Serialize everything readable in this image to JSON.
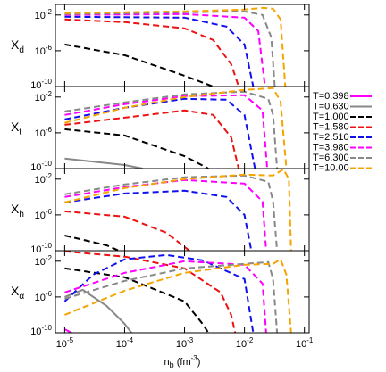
{
  "chart_data": {
    "type": "line",
    "log_x": true,
    "log_y": true,
    "xlabel": {
      "main": "n",
      "sub": "b",
      "unit": " (fm",
      "unit_exp": "-3",
      "close": ")"
    },
    "xlim": [
      7e-06,
      0.12
    ],
    "xticks": [
      {
        "value": 1e-05,
        "label": "10^-5"
      },
      {
        "value": 0.0001,
        "label": "10^-4"
      },
      {
        "value": 0.001,
        "label": "10^-3"
      },
      {
        "value": 0.01,
        "label": "10^-2"
      },
      {
        "value": 0.1,
        "label": "10^-1"
      }
    ],
    "series": [
      {
        "name": "T=0.398",
        "color": "#ff00ff",
        "dashed": false
      },
      {
        "name": "T=0.630",
        "color": "#888888",
        "dashed": false
      },
      {
        "name": "T=1.000",
        "color": "#000000",
        "dashed": true
      },
      {
        "name": "T=1.580",
        "color": "#ee1111",
        "dashed": true
      },
      {
        "name": "T=2.510",
        "color": "#1111ee",
        "dashed": true
      },
      {
        "name": "T=3.980",
        "color": "#ff00ff",
        "dashed": true
      },
      {
        "name": "T=6.300",
        "color": "#888888",
        "dashed": true
      },
      {
        "name": "T=10.00",
        "color": "#f5a400",
        "dashed": true
      }
    ],
    "panels": [
      {
        "ylabel": "X",
        "ylabel_sub": "d",
        "ylim": [
          1e-10,
          0.15
        ],
        "yticks": [
          {
            "value": 0.01,
            "label": "10^-2"
          },
          {
            "value": 1e-06,
            "label": "10^-6"
          },
          {
            "value": 1e-10,
            "label": "10^-10"
          }
        ],
        "lines": [
          {
            "x": [],
            "values": []
          },
          {
            "x": [],
            "values": []
          },
          {
            "x": [
              1e-05,
              0.0001,
              0.001,
              0.003
            ],
            "values": [
              5e-06,
              3.2e-07,
              1.6e-09,
              1e-10
            ]
          },
          {
            "x": [
              1e-05,
              0.0001,
              0.001,
              0.003,
              0.006,
              0.008
            ],
            "values": [
              0.0032,
              0.0016,
              0.00032,
              1.6e-05,
              3.2e-08,
              1e-10
            ]
          },
          {
            "x": [
              1e-05,
              0.001,
              0.005,
              0.01,
              0.014
            ],
            "values": [
              0.0063,
              0.005,
              0.0005,
              5e-06,
              1e-10
            ]
          },
          {
            "x": [
              1e-05,
              0.001,
              0.01,
              0.017,
              0.022
            ],
            "values": [
              0.01,
              0.0126,
              0.005,
              0.00016,
              1e-10
            ]
          },
          {
            "x": [
              1e-05,
              0.001,
              0.01,
              0.02,
              0.028,
              0.032
            ],
            "values": [
              0.0126,
              0.02,
              0.025,
              0.01,
              3.2e-05,
              1e-10
            ]
          },
          {
            "x": [
              1e-05,
              0.001,
              0.01,
              0.02,
              0.03,
              0.04,
              0.048
            ],
            "values": [
              0.016,
              0.025,
              0.04,
              0.063,
              0.05,
              0.0032,
              1e-10
            ]
          }
        ]
      },
      {
        "ylabel": "X",
        "ylabel_sub": "t",
        "ylim": [
          1e-10,
          0.15
        ],
        "yticks": [
          {
            "value": 0.01,
            "label": "10^-2"
          },
          {
            "value": 1e-06,
            "label": "10^-6"
          },
          {
            "value": 1e-10,
            "label": "10^-10"
          }
        ],
        "lines": [
          {
            "x": [],
            "values": []
          },
          {
            "x": [
              1e-05,
              0.0001,
              0.0002
            ],
            "values": [
              1.3e-09,
              2.5e-10,
              1e-10
            ]
          },
          {
            "x": [
              1e-05,
              0.0001,
              0.001,
              0.0025
            ],
            "values": [
              2.5e-06,
              5e-07,
              2.5e-09,
              1e-10
            ]
          },
          {
            "x": [
              1e-05,
              0.0001,
              0.001,
              0.003,
              0.006,
              0.008
            ],
            "values": [
              7.9e-06,
              5e-05,
              0.00032,
              0.0001,
              3.2e-07,
              1e-10
            ]
          },
          {
            "x": [
              1e-05,
              0.0001,
              0.001,
              0.005,
              0.01,
              0.015
            ],
            "values": [
              3.2e-05,
              0.00063,
              0.0063,
              0.005,
              0.0001,
              1e-10
            ]
          },
          {
            "x": [
              1e-05,
              0.0001,
              0.001,
              0.01,
              0.02,
              0.024
            ],
            "values": [
              0.0001,
              0.0016,
              0.0126,
              0.016,
              0.00032,
              1e-10
            ]
          },
          {
            "x": [
              1e-05,
              0.0001,
              0.001,
              0.01,
              0.025,
              0.03,
              0.035
            ],
            "values": [
              0.00025,
              0.0025,
              0.02,
              0.04,
              0.0063,
              0.0001,
              1e-10
            ]
          },
          {
            "x": [
              1e-05,
              0.0001,
              0.001,
              0.01,
              0.03,
              0.04,
              0.05
            ],
            "values": [
              1.3e-05,
              0.00063,
              0.01,
              0.063,
              0.1,
              0.0032,
              1e-10
            ]
          }
        ]
      },
      {
        "ylabel": "X",
        "ylabel_sub": "h",
        "ylim": [
          1e-10,
          0.15
        ],
        "yticks": [
          {
            "value": 0.01,
            "label": "10^-2"
          },
          {
            "value": 1e-06,
            "label": "10^-6"
          },
          {
            "value": 1e-10,
            "label": "10^-10"
          }
        ],
        "lines": [
          {
            "x": [],
            "values": []
          },
          {
            "x": [],
            "values": []
          },
          {
            "x": [
              1e-05,
              5e-05,
              8e-05
            ],
            "values": [
              5e-09,
              4e-10,
              1e-10
            ]
          },
          {
            "x": [
              1e-05,
              0.0001,
              0.0005,
              0.0012
            ],
            "values": [
              2.5e-06,
              6.3e-07,
              1e-08,
              1e-10
            ]
          },
          {
            "x": [
              1e-05,
              0.0001,
              0.001,
              0.005,
              0.01,
              0.013
            ],
            "values": [
              2.5e-05,
              0.00025,
              0.0005,
              0.0001,
              1e-06,
              1e-10
            ]
          },
          {
            "x": [
              1e-05,
              0.0001,
              0.001,
              0.01,
              0.02,
              0.023
            ],
            "values": [
              0.0001,
              0.0013,
              0.0079,
              0.0032,
              3.2e-05,
              1e-10
            ]
          },
          {
            "x": [
              1e-05,
              0.0001,
              0.001,
              0.01,
              0.025,
              0.03,
              0.035
            ],
            "values": [
              0.0002,
              0.0025,
              0.016,
              0.025,
              0.005,
              3.2e-05,
              1e-10
            ]
          },
          {
            "x": [
              1e-05,
              0.0001,
              0.001,
              0.01,
              0.03,
              0.045,
              0.055,
              0.06
            ],
            "values": [
              2.5e-05,
              0.001,
              0.01,
              0.032,
              0.025,
              0.126,
              0.01,
              1e-10
            ]
          }
        ]
      },
      {
        "ylabel": "X",
        "ylabel_sub": "α",
        "ylim": [
          1e-10,
          0.15
        ],
        "yticks": [
          {
            "value": 0.01,
            "label": "10^-2"
          },
          {
            "value": 1e-06,
            "label": "10^-6"
          },
          {
            "value": 1e-10,
            "label": "10^-10"
          }
        ],
        "lines": [
          {
            "x": [
              1e-05,
              1.3e-05
            ],
            "values": [
              2.5e-10,
              1e-10
            ]
          },
          {
            "x": [
              1e-05,
              2e-05,
              5e-05,
              0.0001,
              0.00013
            ],
            "values": [
              1e-06,
              6.3e-06,
              1e-07,
              1e-09,
              1e-10
            ]
          },
          {
            "x": [
              1e-05,
              0.0001,
              0.001,
              0.002,
              0.0025
            ],
            "values": [
              0.0016,
              0.00016,
              3.2e-07,
              1e-09,
              1e-10
            ]
          },
          {
            "x": [
              1e-05,
              0.0001,
              0.001,
              0.004,
              0.006,
              0.007
            ],
            "values": [
              0.126,
              0.032,
              0.0016,
              3.2e-06,
              1e-08,
              1e-10
            ]
          },
          {
            "x": [
              1e-05,
              3e-05,
              0.0001,
              0.0005,
              0.002,
              0.01,
              0.014
            ],
            "values": [
              3.2e-07,
              0.00032,
              0.016,
              0.05,
              0.0126,
              0.0001,
              1e-10
            ]
          },
          {
            "x": [
              1e-05,
              0.0001,
              0.001,
              0.01,
              0.02,
              0.023
            ],
            "values": [
              3.2e-06,
              0.0005,
              0.01,
              0.004,
              3.2e-05,
              1e-10
            ]
          },
          {
            "x": [
              1e-05,
              0.0001,
              0.001,
              0.01,
              0.025,
              0.03,
              0.035
            ],
            "values": [
              6.3e-07,
              6.3e-05,
              0.0016,
              0.005,
              0.0079,
              0.0001,
              1e-10
            ]
          },
          {
            "x": [
              1e-05,
              0.0001,
              0.001,
              0.01,
              0.03,
              0.04,
              0.05,
              0.06
            ],
            "values": [
              1e-08,
              5e-06,
              0.0005,
              0.004,
              0.005,
              0.016,
              0.00032,
              1e-10
            ]
          }
        ]
      }
    ]
  }
}
